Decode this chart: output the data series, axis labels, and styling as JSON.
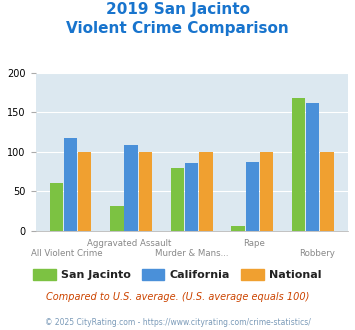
{
  "title_line1": "2019 San Jacinto",
  "title_line2": "Violent Crime Comparison",
  "title_color": "#1874cd",
  "san_jacinto": [
    60,
    32,
    80,
    6,
    168
  ],
  "california": [
    118,
    108,
    86,
    87,
    162
  ],
  "national": [
    100,
    100,
    100,
    100,
    100
  ],
  "colors": {
    "san_jacinto": "#7cc242",
    "california": "#4a90d9",
    "national": "#f0a030"
  },
  "ylim": [
    0,
    200
  ],
  "yticks": [
    0,
    50,
    100,
    150,
    200
  ],
  "plot_bg": "#dce8f0",
  "subtitle_text": "Compared to U.S. average. (U.S. average equals 100)",
  "subtitle_color": "#cc4400",
  "footer_text": "© 2025 CityRating.com - https://www.cityrating.com/crime-statistics/",
  "footer_color": "#7a9ab8",
  "legend_labels": [
    "San Jacinto",
    "California",
    "National"
  ],
  "top_xlabels": [
    "",
    "Aggravated Assault",
    "",
    "Rape",
    ""
  ],
  "bot_xlabels": [
    "All Violent Crime",
    "",
    "Murder & Mans...",
    "",
    "Robbery"
  ]
}
